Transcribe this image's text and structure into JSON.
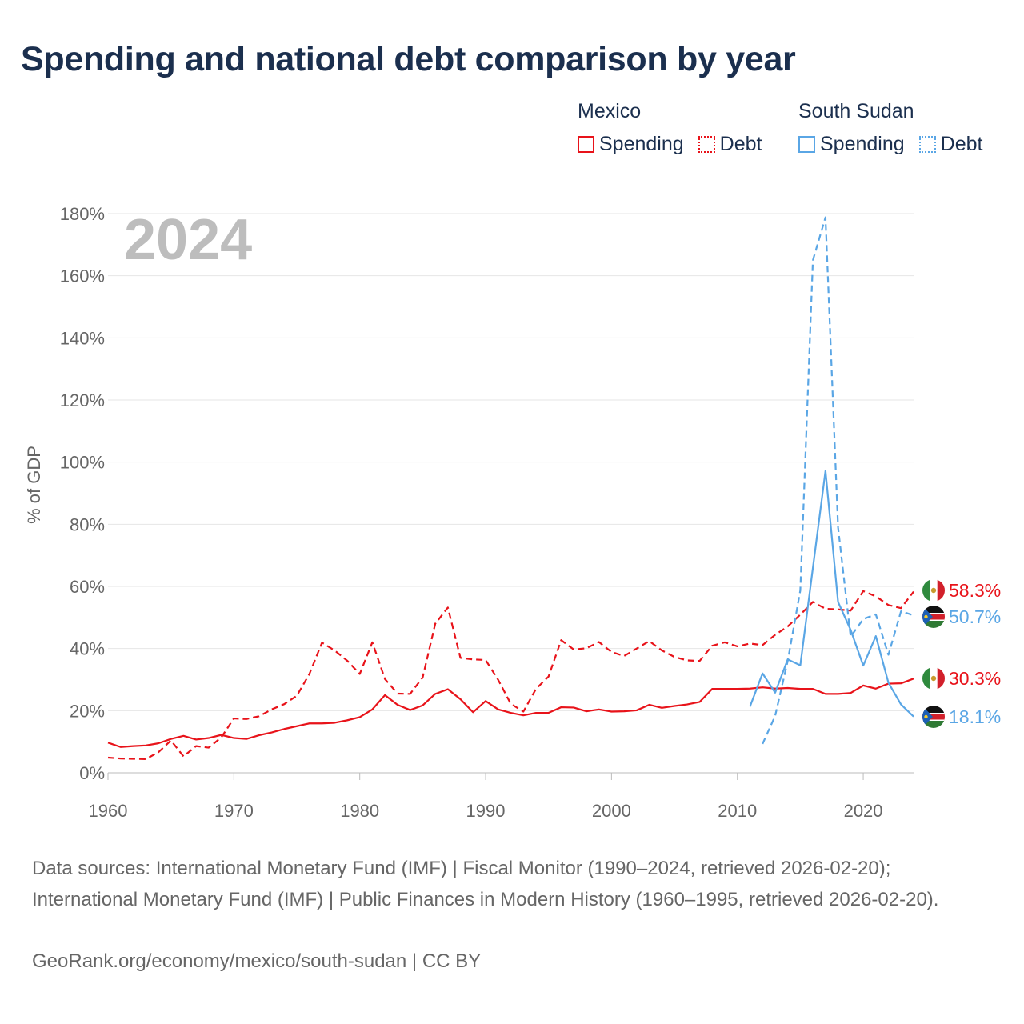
{
  "title": "Spending and national debt comparison by year",
  "legend": {
    "groups": [
      {
        "name": "Mexico",
        "spending_label": "Spending",
        "debt_label": "Debt",
        "color": "#e8131a"
      },
      {
        "name": "South Sudan",
        "spending_label": "Spending",
        "debt_label": "Debt",
        "color": "#5aa6e5"
      }
    ]
  },
  "footer": {
    "sources": "Data sources: International Monetary Fund (IMF) | Fiscal Monitor (1990–2024, retrieved 2026-02-20); International Monetary Fund (IMF) | Public Finances in Modern History (1960–1995, retrieved 2026-02-20).",
    "attribution": "GeoRank.org/economy/mexico/south-sudan | CC BY"
  },
  "chart_data": {
    "type": "line",
    "year_label": "2024",
    "ylabel": "% of GDP",
    "xlabel": "",
    "xlim": [
      1960,
      2024
    ],
    "ylim": [
      0,
      180
    ],
    "x_ticks": [
      1960,
      1970,
      1980,
      1990,
      2000,
      2010,
      2020
    ],
    "y_ticks": [
      0,
      20,
      40,
      60,
      80,
      100,
      120,
      140,
      160,
      180
    ],
    "y_tick_labels": [
      "0%",
      "20%",
      "40%",
      "60%",
      "80%",
      "100%",
      "120%",
      "140%",
      "160%",
      "180%"
    ],
    "grid": true,
    "series": [
      {
        "name": "Mexico Spending",
        "country": "Mexico",
        "metric": "Spending",
        "color": "#e8131a",
        "dashed": false,
        "end_label": "30.3%",
        "start_year": 1960,
        "values": [
          9.7,
          8.3,
          8.6,
          8.8,
          9.5,
          10.9,
          11.9,
          10.7,
          11.2,
          12.2,
          11.2,
          10.9,
          12.1,
          13.0,
          14.1,
          15.0,
          15.9,
          15.9,
          16.1,
          16.9,
          17.9,
          20.4,
          25.0,
          21.9,
          20.2,
          21.7,
          25.4,
          26.9,
          23.7,
          19.5,
          23.1,
          20.4,
          19.3,
          18.5,
          19.3,
          19.3,
          21.1,
          21.0,
          19.8,
          20.4,
          19.7,
          19.8,
          20.1,
          21.9,
          20.9,
          21.5,
          22.0,
          22.8,
          27.0,
          27.0,
          27.0,
          27.1,
          27.5,
          27.1,
          27.3,
          27.0,
          27.0,
          25.4,
          25.4,
          25.7,
          28.1,
          27.1,
          28.7,
          28.8,
          30.3
        ]
      },
      {
        "name": "Mexico Debt",
        "country": "Mexico",
        "metric": "Debt",
        "color": "#e8131a",
        "dashed": true,
        "end_label": "58.3%",
        "start_year": 1960,
        "values": [
          4.9,
          4.6,
          4.5,
          4.4,
          6.6,
          10.4,
          5.3,
          8.6,
          8.1,
          11.4,
          17.5,
          17.3,
          18.2,
          20.4,
          22.1,
          24.8,
          31.8,
          41.9,
          39.4,
          36.1,
          31.8,
          42.0,
          30.2,
          25.5,
          25.4,
          30.7,
          48.0,
          53.2,
          37.0,
          36.5,
          36.3,
          29.9,
          22.2,
          19.7,
          27.0,
          31.0,
          42.7,
          39.7,
          40.1,
          42.1,
          38.9,
          37.6,
          40.0,
          42.4,
          39.4,
          37.3,
          36.2,
          36.0,
          40.9,
          42.0,
          40.7,
          41.6,
          41.1,
          44.4,
          47.1,
          50.9,
          55.0,
          52.8,
          52.6,
          52.2,
          58.5,
          56.8,
          54.0,
          53.0,
          58.3
        ]
      },
      {
        "name": "South Sudan Spending",
        "country": "South Sudan",
        "metric": "Spending",
        "color": "#5aa6e5",
        "dashed": false,
        "end_label": "18.1%",
        "start_year": 2011,
        "values": [
          21.3,
          32.0,
          25.8,
          36.5,
          34.6,
          66.0,
          97.2,
          55.0,
          46.0,
          34.5,
          44.0,
          29.0,
          22.0,
          18.1
        ]
      },
      {
        "name": "South Sudan Debt",
        "country": "South Sudan",
        "metric": "Debt",
        "color": "#5aa6e5",
        "dashed": true,
        "end_label": "50.7%",
        "start_year": 2012,
        "values": [
          9.3,
          18.3,
          36.0,
          58.7,
          165.0,
          178.8,
          79.0,
          43.8,
          49.5,
          51.0,
          38.0,
          52.0,
          50.7
        ]
      }
    ]
  }
}
